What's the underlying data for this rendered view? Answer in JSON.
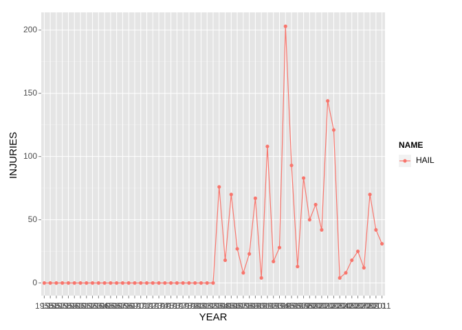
{
  "chart_data": {
    "type": "line",
    "x_label": "YEAR",
    "y_label": "INJURIES",
    "categories": [
      "1955",
      "1956",
      "1957",
      "1958",
      "1959",
      "1960",
      "1961",
      "1962",
      "1963",
      "1964",
      "1965",
      "1966",
      "1967",
      "1968",
      "1969",
      "1970",
      "1971",
      "1972",
      "1973",
      "1974",
      "1975",
      "1976",
      "1977",
      "1978",
      "1979",
      "1980",
      "1981",
      "1982",
      "1983",
      "1984",
      "1985",
      "1986",
      "1987",
      "1988",
      "1989",
      "1990",
      "1991",
      "1992",
      "1993",
      "1994",
      "1995",
      "1996",
      "1997",
      "1998",
      "1999",
      "2000",
      "2001",
      "2002",
      "2003",
      "2004",
      "2005",
      "2006",
      "2007",
      "2008",
      "2009",
      "2010",
      "2011"
    ],
    "series": [
      {
        "name": "HAIL",
        "color": "#f8766d",
        "values": [
          0,
          0,
          0,
          0,
          0,
          0,
          0,
          0,
          0,
          0,
          0,
          0,
          0,
          0,
          0,
          0,
          0,
          0,
          0,
          0,
          0,
          0,
          0,
          0,
          0,
          0,
          0,
          0,
          0,
          76,
          18,
          70,
          27,
          8,
          23,
          67,
          4,
          108,
          17,
          28,
          203,
          93,
          13,
          83,
          50,
          62,
          42,
          144,
          121,
          4,
          8,
          18,
          25,
          12,
          70,
          42,
          31
        ]
      }
    ],
    "legend_title": "NAME",
    "ylim": [
      -10,
      214
    ],
    "yticks": [
      0,
      50,
      100,
      150,
      200
    ],
    "grid": true
  }
}
